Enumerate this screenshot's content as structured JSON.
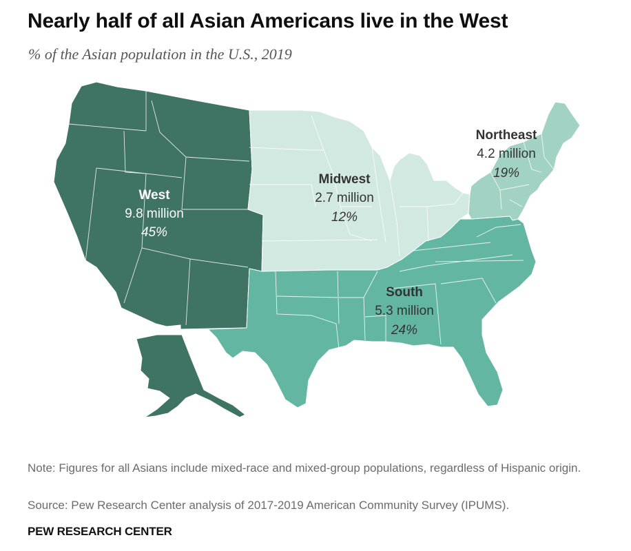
{
  "title": "Nearly half of all Asian Americans live in the West",
  "subtitle": "% of the Asian population in the U.S., 2019",
  "regions": [
    {
      "key": "west",
      "name": "West",
      "population": "9.8 million",
      "share": "45%",
      "share_value": 45,
      "color": "#3f7363",
      "label_color": "#ffffff"
    },
    {
      "key": "midwest",
      "name": "Midwest",
      "population": "2.7 million",
      "share": "12%",
      "share_value": 12,
      "color": "#d2e9e2",
      "label_color": "#333333"
    },
    {
      "key": "northeast",
      "name": "Northeast",
      "population": "4.2 million",
      "share": "19%",
      "share_value": 19,
      "color": "#a2d2c3",
      "label_color": "#333333"
    },
    {
      "key": "south",
      "name": "South",
      "population": "5.3 million",
      "share": "24%",
      "share_value": 24,
      "color": "#63b7a2",
      "label_color": "#333333"
    }
  ],
  "note": "Note: Figures for all Asians include mixed-race and mixed-group populations, regardless of Hispanic origin.",
  "source": "Source: Pew Research Center analysis of 2017-2019 American Community Survey (IPUMS).",
  "brand": "PEW RESEARCH CENTER"
}
